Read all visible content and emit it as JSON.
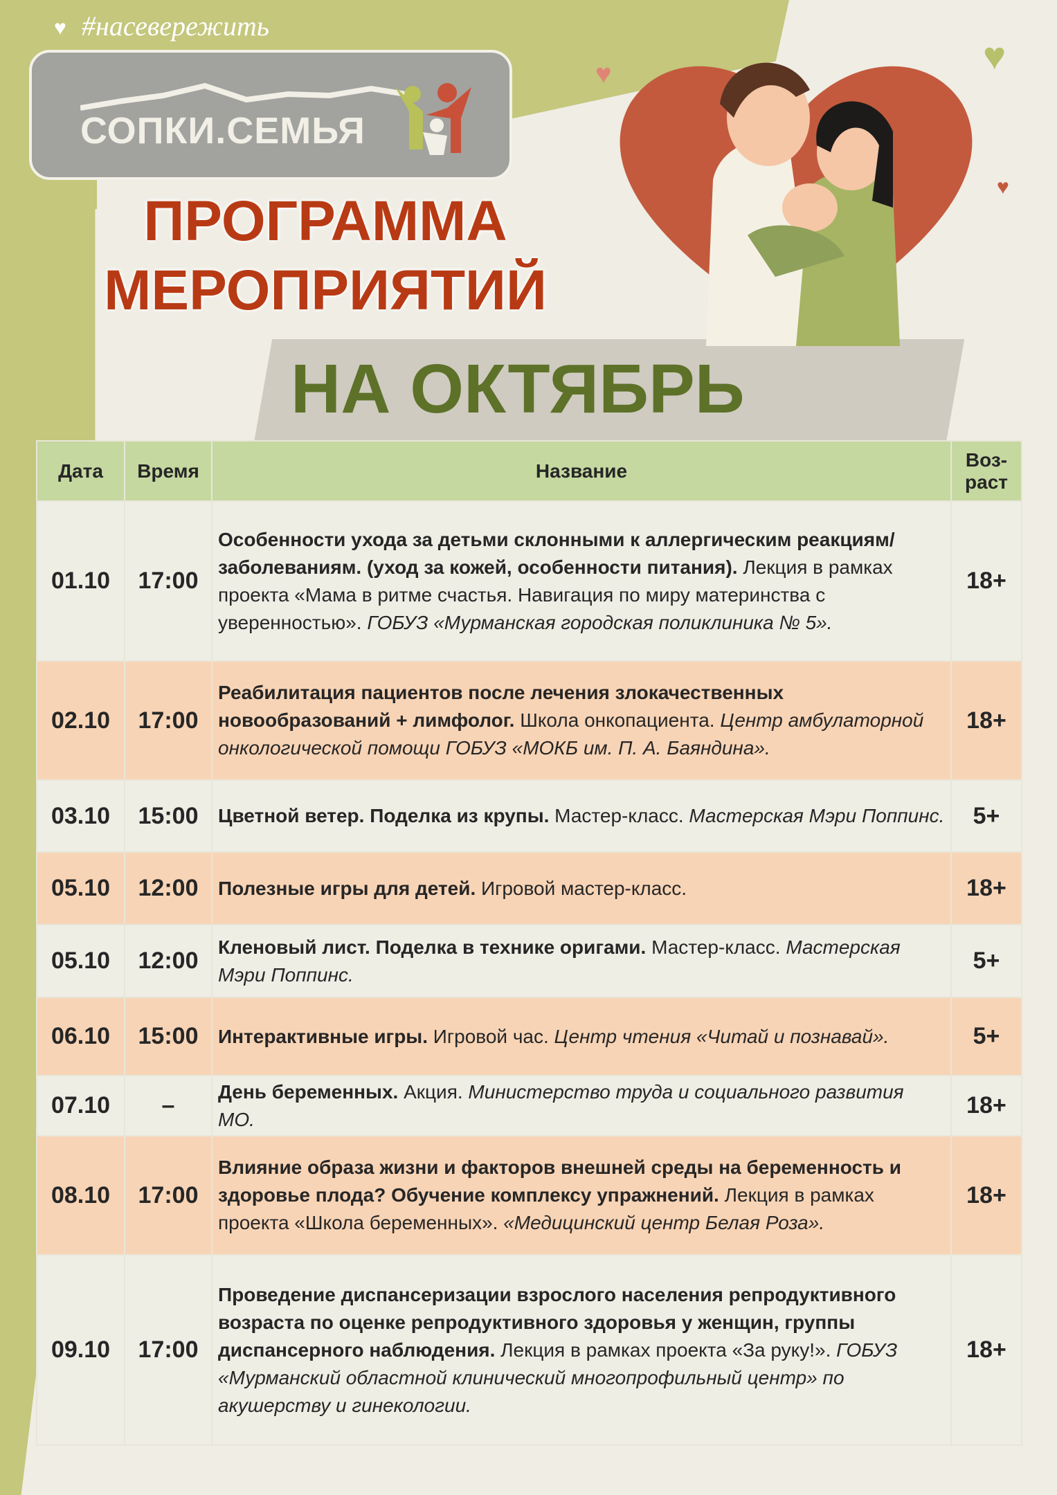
{
  "header": {
    "hashtag": "#насевережить",
    "logo_text": "СОПКИ.СЕМЬЯ",
    "title_line1": "ПРОГРАММА",
    "title_line2": "МЕРОПРИЯТИЙ",
    "subtitle": "НА ОКТЯБРЬ"
  },
  "colors": {
    "title_red": "#b83a14",
    "subtitle_green": "#5d7129",
    "header_green": "#c5d8a0",
    "row_peach": "#f8d4b6",
    "row_light": "#efeee5"
  },
  "table": {
    "columns": [
      "Дата",
      "Время",
      "Название",
      "Воз-раст"
    ],
    "rows": [
      {
        "date": "01.10",
        "time": "17:00",
        "bold": "Особенности ухода за детьми склонными к аллергическим реакциям/заболеваниям. (уход за кожей, особенности питания).",
        "normal": " Лекция в рамках проекта «Мама в ритме счастья. Навигация по миру материнства с уверенностью». ",
        "italic": "ГОБУЗ «Мурманская городская поликлиника № 5».",
        "age": "18+"
      },
      {
        "date": "02.10",
        "time": "17:00",
        "bold": "Реабилитация пациентов после лечения злокачественных новообразований + лимфолог.",
        "normal": " Школа онкопациента. ",
        "italic": "Центр амбулаторной онкологической помощи ГОБУЗ «МОКБ им. П. А. Баяндина».",
        "age": "18+"
      },
      {
        "date": "03.10",
        "time": "15:00",
        "bold": "Цветной ветер. Поделка из крупы.",
        "normal": " Мастер-класс. ",
        "italic": "Мастерская Мэри Поппинс.",
        "age": "5+"
      },
      {
        "date": "05.10",
        "time": "12:00",
        "bold": "Полезные игры для детей.",
        "normal": " Игровой мастер-класс.",
        "italic": "",
        "age": "18+"
      },
      {
        "date": "05.10",
        "time": "12:00",
        "bold": "Кленовый лист. Поделка в технике оригами.",
        "normal": " Мастер-класс. ",
        "italic": "Мастерская Мэри Поппинс.",
        "age": "5+"
      },
      {
        "date": "06.10",
        "time": "15:00",
        "bold": "Интерактивные игры.",
        "normal": " Игровой час. ",
        "italic": "Центр чтения «Читай и познавай».",
        "age": "5+"
      },
      {
        "date": "07.10",
        "time": "–",
        "bold": "День беременных.",
        "normal": " Акция. ",
        "italic": "Министерство труда и социального развития МО.",
        "age": "18+"
      },
      {
        "date": "08.10",
        "time": "17:00",
        "bold": "Влияние образа жизни и факторов внешней среды на беременность и здоровье плода? Обучение комплексу упражнений.",
        "normal": " Лекция в рамках проекта «Школа беременных». ",
        "italic": "«Медицинский центр Белая Роза».",
        "age": "18+"
      },
      {
        "date": "09.10",
        "time": "17:00",
        "bold": "Проведение диспансеризации взрослого населения репродуктивного возраста по оценке репродуктивного здоровья у женщин, группы диспансерного наблюдения.",
        "normal": " Лекция в рамках проекта «За руку!». ",
        "italic": "ГОБУЗ «Мурманский областной клинический многопрофильный центр» по акушерству и гинекологии.",
        "age": "18+"
      }
    ]
  }
}
